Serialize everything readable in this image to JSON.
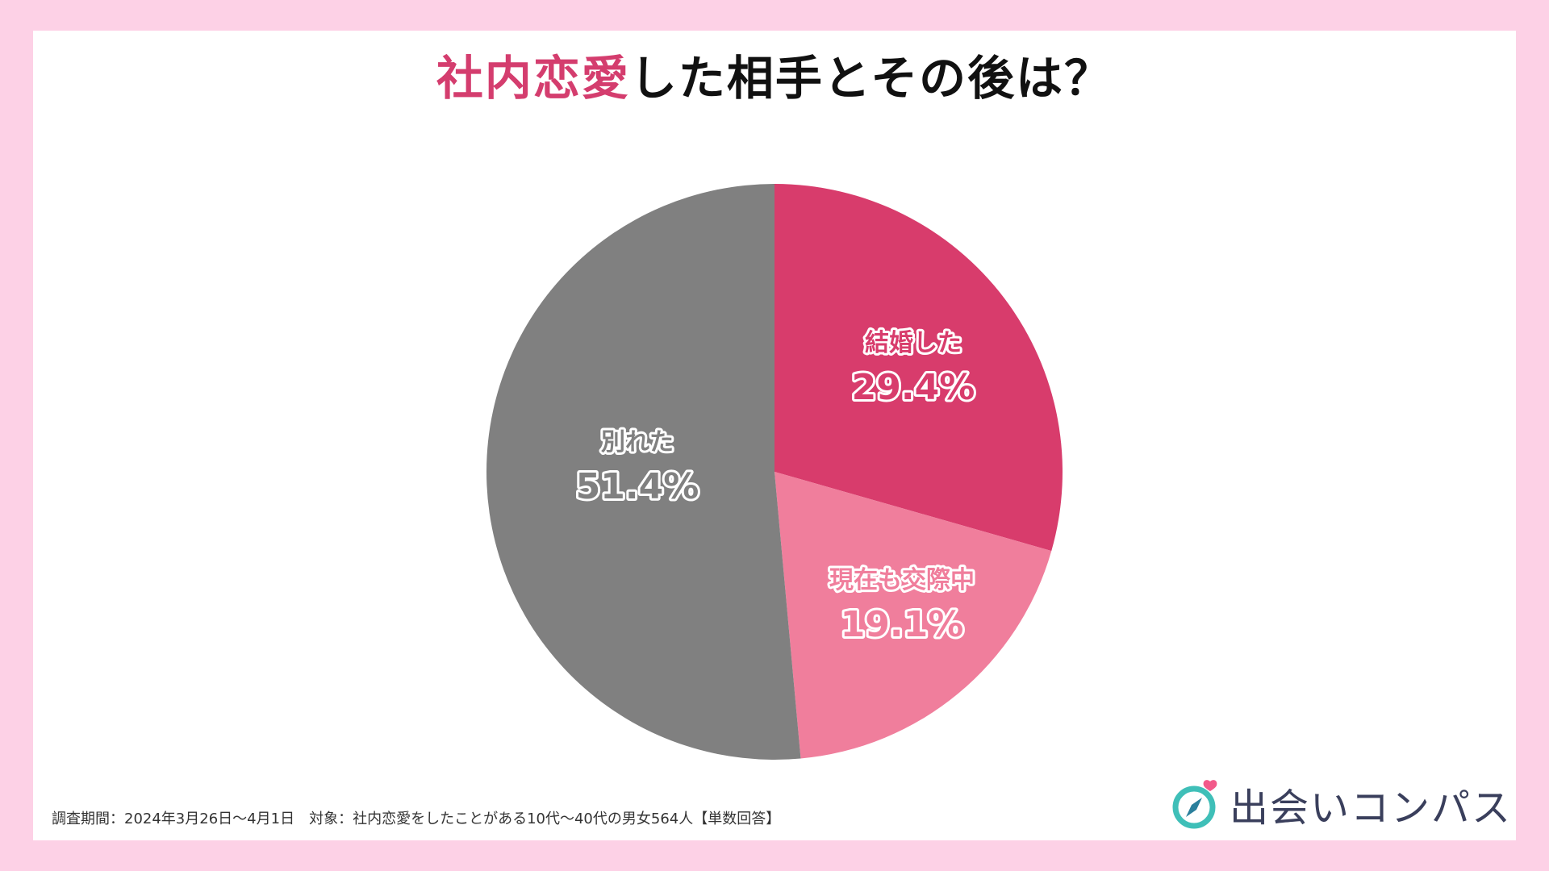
{
  "title": {
    "accent": "社内恋愛",
    "rest": "した相手とその後は？"
  },
  "chart_data": {
    "type": "pie",
    "title": "社内恋愛した相手とその後は？",
    "slices": [
      {
        "label": "結婚した",
        "value": 29.4,
        "value_label": "29.4%",
        "color": "#d83c6c"
      },
      {
        "label": "現在も交際中",
        "value": 19.1,
        "value_label": "19.1%",
        "color": "#f07e9c"
      },
      {
        "label": "別れた",
        "value": 51.4,
        "value_label": "51.4%",
        "color": "#808080"
      }
    ],
    "start": "12 o'clock",
    "direction": "clockwise"
  },
  "footnote": "調査期間：2024年3月26日〜4月1日　対象：社内恋愛をしたことがある10代〜40代の男女564人【単数回答】",
  "brand": {
    "name": "出会いコンパス",
    "icon": "compass-heart-icon",
    "colors": {
      "ring": "#3fbfb8",
      "needle": "#2a7f9c",
      "heart": "#f25a8a",
      "text": "#3a3f5c"
    }
  }
}
